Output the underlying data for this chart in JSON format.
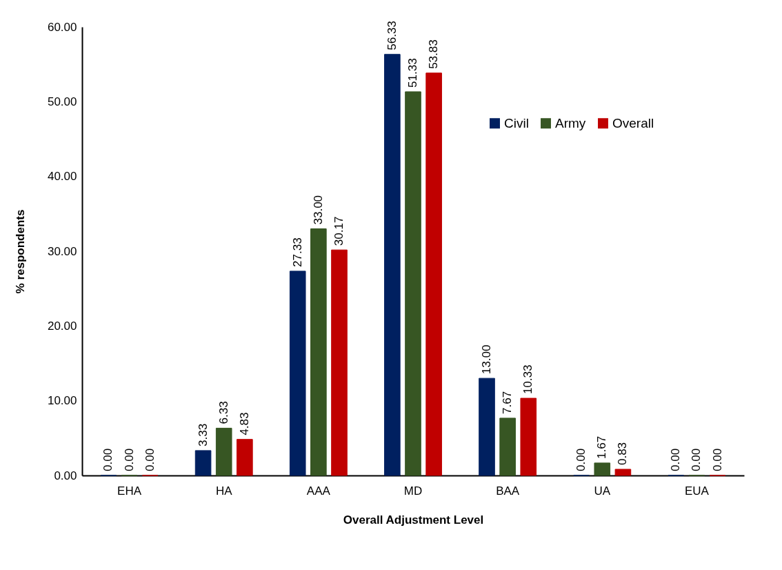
{
  "chart_data": {
    "type": "bar",
    "xlabel": "Overall Adjustment Level",
    "ylabel": "% respondents",
    "categories": [
      "EHA",
      "HA",
      "AAA",
      "MD",
      "BAA",
      "UA",
      "EUA"
    ],
    "series": [
      {
        "name": "Civil",
        "color": "#002060",
        "values": [
          0,
          3.33,
          27.33,
          56.33,
          13,
          0,
          0
        ],
        "value_labels": [
          "0.00",
          "3.33",
          "27.33",
          "56.33",
          "13.00",
          "0.00",
          "0.00"
        ]
      },
      {
        "name": "Army",
        "color": "#375623",
        "values": [
          0,
          6.33,
          33,
          51.33,
          7.67,
          1.67,
          0
        ],
        "value_labels": [
          "0.00",
          "6.33",
          "33.00",
          "51.33",
          "7.67",
          "1.67",
          "0.00"
        ]
      },
      {
        "name": "Overall",
        "color": "#c00000",
        "values": [
          0,
          4.83,
          30.17,
          53.83,
          10.33,
          0.83,
          0
        ],
        "value_labels": [
          "0.00",
          "4.83",
          "30.17",
          "53.83",
          "10.33",
          "0.83",
          "0.00"
        ]
      }
    ],
    "ylim": [
      0,
      60
    ],
    "yticks": [
      {
        "value": 0,
        "label": "0.00"
      },
      {
        "value": 10,
        "label": "10.00"
      },
      {
        "value": 20,
        "label": "20.00"
      },
      {
        "value": 30,
        "label": "30.00"
      },
      {
        "value": 40,
        "label": "40.00"
      },
      {
        "value": 50,
        "label": "50.00"
      },
      {
        "value": 60,
        "label": "60.00"
      }
    ],
    "grid": false,
    "legend": "top right"
  }
}
